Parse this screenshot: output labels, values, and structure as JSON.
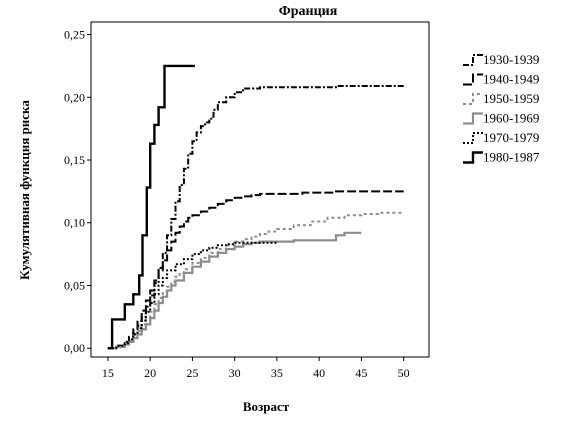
{
  "chart_data": {
    "type": "line",
    "step": true,
    "title": "Франция",
    "xlabel": "Возраст",
    "ylabel": "Кумулятивная функция риска",
    "xlim": [
      13,
      53
    ],
    "ylim": [
      -0.007,
      0.26
    ],
    "x_ticks": [
      15,
      20,
      25,
      30,
      35,
      40,
      45,
      50
    ],
    "y_ticks": [
      0.0,
      0.05,
      0.1,
      0.15,
      0.2,
      0.25
    ],
    "y_tick_labels": [
      "0,00",
      "0,05",
      "0,10",
      "0,15",
      "0,20",
      "0,25"
    ],
    "grid": false,
    "legend_position": "right",
    "series": [
      {
        "name": "1930-1939",
        "color": "#000000",
        "dash": "6,2,2,2",
        "width": 2,
        "x": [
          15,
          16,
          17,
          17.5,
          18,
          18.5,
          19,
          19.5,
          20,
          20.5,
          21,
          21.5,
          22,
          22.5,
          23,
          23.5,
          24,
          24.5,
          25,
          25.5,
          26,
          26.5,
          27,
          27.5,
          28,
          29,
          30,
          31,
          32,
          33,
          35,
          38,
          42,
          46,
          50
        ],
        "y": [
          0.0,
          0.002,
          0.004,
          0.007,
          0.012,
          0.018,
          0.025,
          0.033,
          0.042,
          0.052,
          0.064,
          0.076,
          0.09,
          0.103,
          0.117,
          0.13,
          0.143,
          0.155,
          0.165,
          0.172,
          0.177,
          0.18,
          0.183,
          0.19,
          0.196,
          0.2,
          0.204,
          0.207,
          0.207,
          0.208,
          0.208,
          0.208,
          0.209,
          0.209,
          0.209
        ]
      },
      {
        "name": "1940-1949",
        "color": "#000000",
        "dash": "9,3",
        "width": 2,
        "x": [
          15,
          16,
          17,
          17.5,
          18,
          18.5,
          19,
          19.5,
          20,
          20.5,
          21,
          21.5,
          22,
          22.5,
          23,
          23.5,
          24,
          24.5,
          25,
          26,
          27,
          28,
          29,
          30,
          31,
          32,
          33,
          35,
          38,
          42,
          46,
          50
        ],
        "y": [
          0.0,
          0.002,
          0.005,
          0.009,
          0.015,
          0.022,
          0.03,
          0.038,
          0.046,
          0.054,
          0.062,
          0.07,
          0.078,
          0.085,
          0.092,
          0.097,
          0.101,
          0.104,
          0.106,
          0.109,
          0.112,
          0.115,
          0.118,
          0.12,
          0.121,
          0.122,
          0.123,
          0.123,
          0.124,
          0.125,
          0.125,
          0.125
        ]
      },
      {
        "name": "1950-1959",
        "color": "#8c8c8c",
        "dash": "3,3",
        "width": 2,
        "x": [
          15,
          16,
          17,
          17.5,
          18,
          18.5,
          19,
          19.5,
          20,
          20.5,
          21,
          21.5,
          22,
          22.5,
          23,
          23.5,
          24,
          25,
          26,
          27,
          28,
          29,
          30,
          31,
          32,
          33,
          34,
          35,
          37,
          39,
          41,
          43,
          45,
          47,
          50
        ],
        "y": [
          0.0,
          0.001,
          0.003,
          0.006,
          0.01,
          0.014,
          0.019,
          0.024,
          0.029,
          0.035,
          0.04,
          0.045,
          0.049,
          0.053,
          0.057,
          0.06,
          0.063,
          0.068,
          0.072,
          0.076,
          0.079,
          0.082,
          0.085,
          0.087,
          0.089,
          0.091,
          0.093,
          0.095,
          0.098,
          0.101,
          0.104,
          0.106,
          0.107,
          0.108,
          0.108
        ]
      },
      {
        "name": "1960-1969",
        "color": "#8c8c8c",
        "dash": "",
        "width": 2.2,
        "x": [
          15,
          16,
          17,
          17.5,
          18,
          18.5,
          19,
          19.5,
          20,
          20.5,
          21,
          21.5,
          22,
          22.5,
          23,
          24,
          25,
          26,
          27,
          28,
          29,
          30,
          31,
          32,
          33,
          35,
          37,
          40,
          42,
          43,
          45
        ],
        "y": [
          0.0,
          0.001,
          0.003,
          0.005,
          0.008,
          0.011,
          0.015,
          0.019,
          0.024,
          0.03,
          0.036,
          0.041,
          0.046,
          0.05,
          0.054,
          0.06,
          0.065,
          0.069,
          0.073,
          0.076,
          0.079,
          0.081,
          0.083,
          0.084,
          0.085,
          0.085,
          0.086,
          0.086,
          0.09,
          0.092,
          0.092
        ]
      },
      {
        "name": "1970-1979",
        "color": "#000000",
        "dash": "2,2",
        "width": 2,
        "x": [
          15,
          16,
          17,
          17.5,
          18,
          18.5,
          19,
          19.5,
          20,
          20.5,
          21,
          21.5,
          22,
          23,
          24,
          25,
          26,
          27,
          28,
          29,
          30,
          31,
          32,
          33,
          34,
          35
        ],
        "y": [
          0.0,
          0.002,
          0.004,
          0.007,
          0.011,
          0.016,
          0.022,
          0.029,
          0.036,
          0.043,
          0.05,
          0.056,
          0.062,
          0.067,
          0.071,
          0.075,
          0.078,
          0.08,
          0.082,
          0.083,
          0.084,
          0.084,
          0.084,
          0.084,
          0.084,
          0.084
        ]
      },
      {
        "name": "1980-1987",
        "color": "#000000",
        "dash": "",
        "width": 2.4,
        "x": [
          15,
          15.5,
          17,
          18,
          18.7,
          19.1,
          19.6,
          20,
          20.5,
          21,
          21.7,
          22.5,
          23.5,
          25.3
        ],
        "y": [
          0.0,
          0.023,
          0.035,
          0.043,
          0.058,
          0.09,
          0.128,
          0.163,
          0.178,
          0.192,
          0.225,
          0.225,
          0.225,
          0.225
        ]
      }
    ]
  }
}
